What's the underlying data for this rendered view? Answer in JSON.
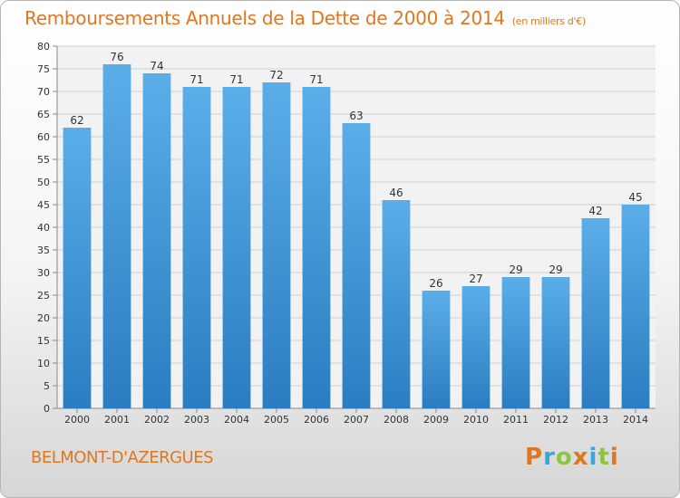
{
  "title": "Remboursements Annuels de la Dette de 2000 à 2014",
  "subtitle": "(en milliers d'€)",
  "commune": "BELMONT-D'AZERGUES",
  "logo_text": "Proxiti",
  "colors": {
    "title": "#e0771f",
    "bar_top": "#5aaee8",
    "bar_bottom": "#2a7dc1",
    "logo": [
      "#e0771f",
      "#3aa6df",
      "#8cc63f",
      "#e0771f",
      "#3aa6df",
      "#8cc63f",
      "#e0771f"
    ]
  },
  "chart_data": {
    "type": "bar",
    "title": "Remboursements Annuels de la Dette de 2000 à 2014",
    "xlabel": "",
    "ylabel": "",
    "ylim": [
      0,
      80
    ],
    "ytick_step": 5,
    "grid": true,
    "categories": [
      "2000",
      "2001",
      "2002",
      "2003",
      "2004",
      "2005",
      "2006",
      "2007",
      "2008",
      "2009",
      "2010",
      "2011",
      "2012",
      "2013",
      "2014"
    ],
    "values": [
      62,
      76,
      74,
      71,
      71,
      72,
      71,
      63,
      46,
      26,
      27,
      29,
      29,
      42,
      45
    ]
  }
}
